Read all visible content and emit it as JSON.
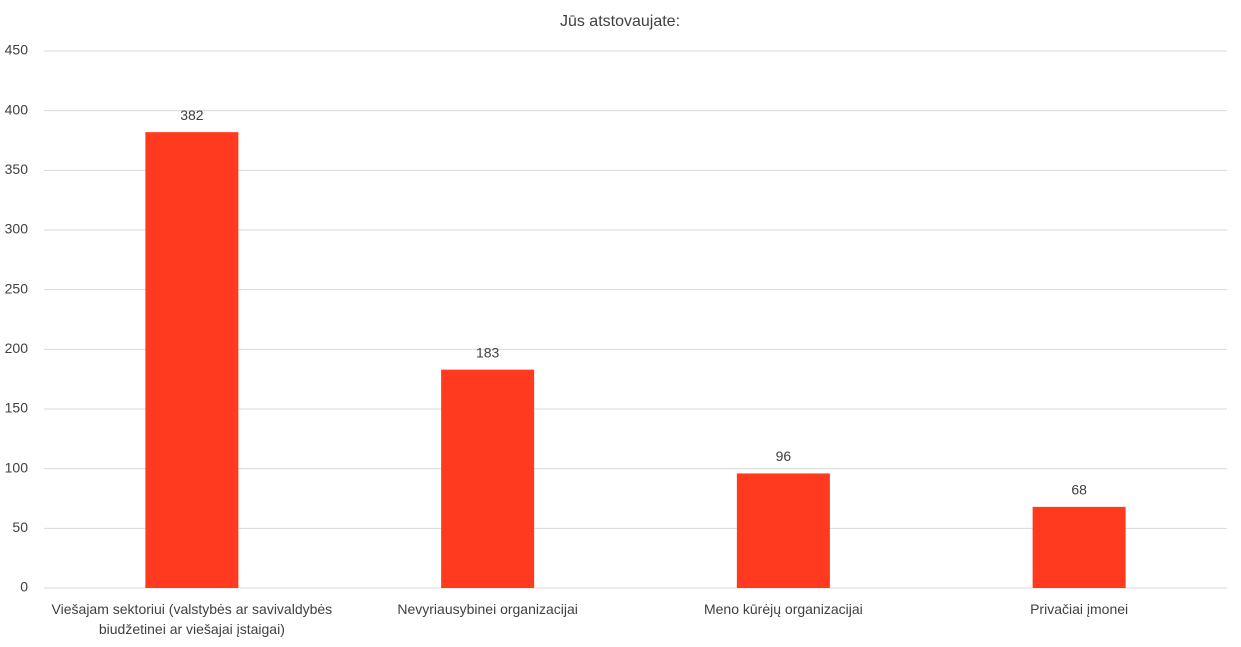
{
  "chart_data": {
    "type": "bar",
    "title": "Jūs atstovaujate:",
    "categories": [
      "Viešajam sektoriui (valstybės ar savivaldybės biudžetinei ar viešajai įstaigai)",
      "Nevyriausybinei organizacijai",
      "Meno kūrėjų organizacijai",
      "Privačiai įmonei"
    ],
    "values": [
      382,
      183,
      96,
      68
    ],
    "color": "#ff3a1e",
    "ylim": [
      0,
      450
    ],
    "yticks": [
      0,
      50,
      100,
      150,
      200,
      250,
      300,
      350,
      400,
      450
    ],
    "grid": true
  }
}
